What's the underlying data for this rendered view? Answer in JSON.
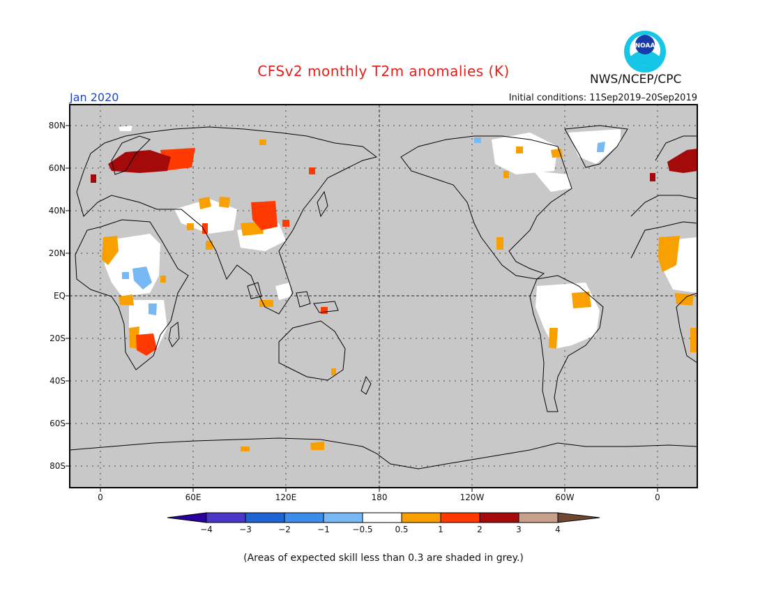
{
  "title": "CFSv2 monthly T2m anomalies (K)",
  "agency": "NWS/NCEP/CPC",
  "logo_text": "NOAA",
  "month": "Jan 2020",
  "initial_conditions": "Initial conditions: 11Sep2019–20Sep2019",
  "footnote": "(Areas of expected skill less than 0.3 are shaded in grey.)",
  "lat_labels": [
    "80N",
    "60N",
    "40N",
    "20N",
    "EQ",
    "20S",
    "40S",
    "60S",
    "80S"
  ],
  "lon_labels": [
    "0",
    "60E",
    "120E",
    "180",
    "120W",
    "60W",
    "0"
  ],
  "colorbar": {
    "labels": [
      "−4",
      "−3",
      "−2",
      "−1",
      "−0.5",
      "0.5",
      "1",
      "2",
      "3",
      "4"
    ],
    "colors": [
      "#2b00a0",
      "#4a37c8",
      "#1e64d2",
      "#3c8ceb",
      "#78b9f5",
      "#ffffff",
      "#f7a000",
      "#ff3a00",
      "#a50a0a",
      "#c8a08c",
      "#6e4632"
    ]
  },
  "colors": {
    "land_no_skill": "#c8c8c8",
    "neutral": "#ffffff",
    "title_red": "#e0201a",
    "month_blue": "#1f44c8"
  }
}
